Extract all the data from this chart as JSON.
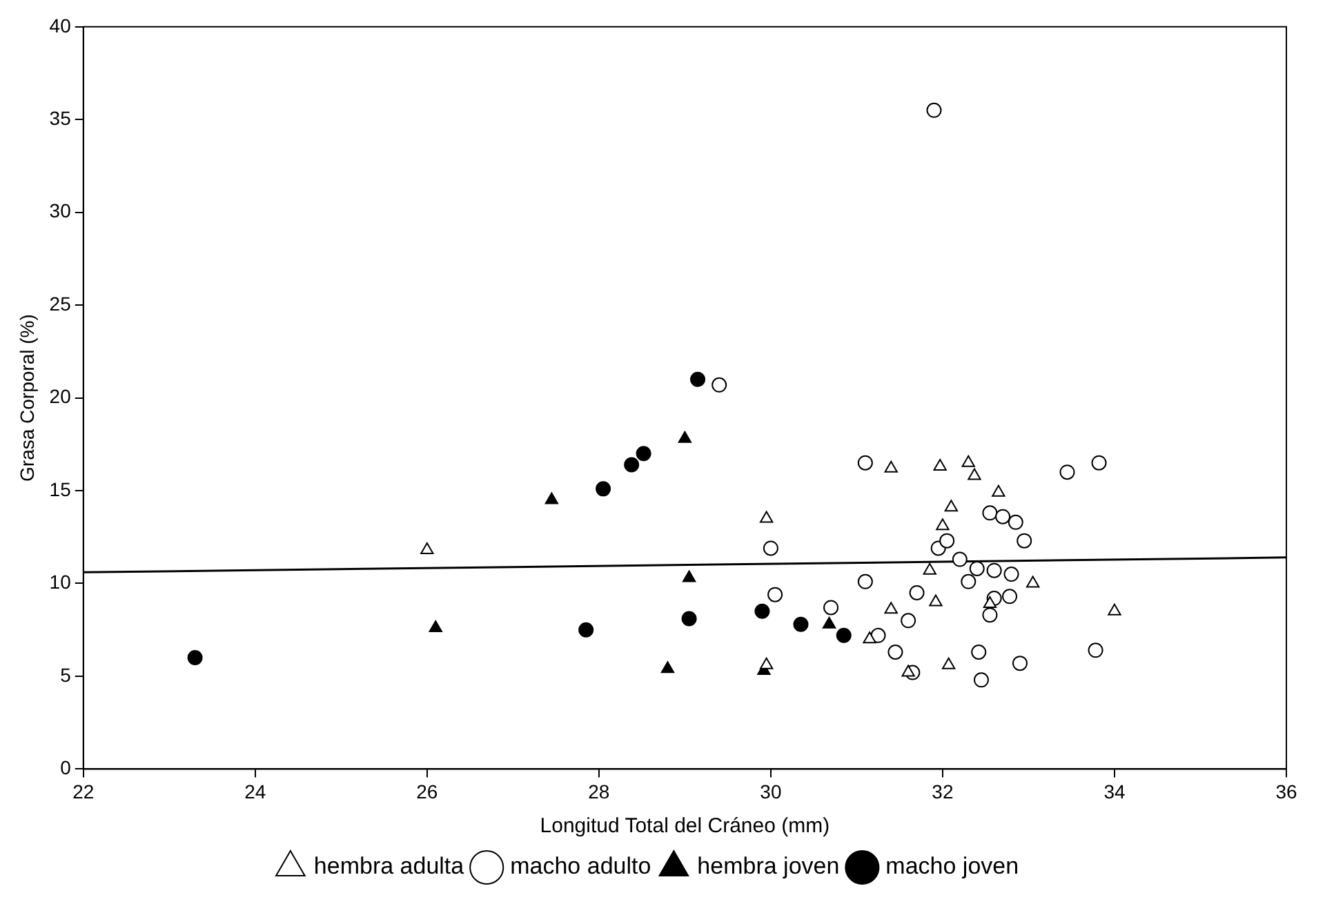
{
  "chart_data": {
    "type": "scatter",
    "xlabel": "Longitud Total del Cráneo (mm)",
    "ylabel": "Grasa Corporal (%)",
    "xlim": [
      22,
      36
    ],
    "xticks": [
      22,
      24,
      26,
      28,
      30,
      32,
      34,
      36
    ],
    "ylim": [
      0,
      40
    ],
    "yticks": [
      0,
      5,
      10,
      15,
      20,
      25,
      30,
      35,
      40
    ],
    "grid": false,
    "legend": "bottom",
    "series": [
      {
        "name": "hembra adulta",
        "color": "#ffffff",
        "marker": "triangle",
        "x": [
          26.0,
          29.95,
          29.95,
          31.15,
          31.4,
          31.4,
          31.6,
          31.85,
          31.92,
          31.97,
          32.0,
          32.1,
          32.07,
          32.3,
          32.37,
          32.55,
          32.65,
          33.05,
          34.0
        ],
        "values": [
          11.8,
          13.5,
          5.6,
          7.0,
          8.6,
          16.2,
          5.2,
          10.7,
          9.0,
          16.3,
          13.1,
          14.1,
          5.6,
          16.5,
          15.8,
          8.9,
          14.9,
          10.0,
          8.5
        ]
      },
      {
        "name": "macho adulto",
        "color": "#ffffff",
        "marker": "circle",
        "x": [
          31.9,
          29.4,
          30.0,
          30.05,
          31.1,
          31.1,
          30.7,
          31.25,
          31.45,
          31.65,
          31.6,
          31.7,
          31.95,
          32.05,
          32.2,
          32.3,
          32.4,
          32.42,
          32.45,
          32.55,
          32.6,
          32.6,
          32.55,
          32.7,
          32.8,
          32.78,
          32.85,
          32.9,
          32.95,
          33.45,
          33.78,
          33.82
        ],
        "values": [
          35.5,
          20.7,
          11.9,
          9.4,
          16.5,
          10.1,
          8.7,
          7.2,
          6.3,
          5.2,
          8.0,
          9.5,
          11.9,
          12.3,
          11.3,
          10.1,
          10.8,
          6.3,
          4.8,
          13.8,
          10.7,
          9.2,
          8.3,
          13.6,
          10.5,
          9.3,
          13.3,
          5.7,
          12.3,
          16.0,
          6.4,
          16.5
        ]
      },
      {
        "name": "hembra joven",
        "color": "#000000",
        "marker": "triangle",
        "x": [
          26.1,
          27.45,
          28.8,
          29.0,
          29.05,
          29.92,
          30.68
        ],
        "values": [
          7.6,
          14.5,
          5.4,
          17.8,
          10.3,
          5.3,
          7.8
        ]
      },
      {
        "name": "macho joven",
        "color": "#000000",
        "marker": "circle",
        "x": [
          23.3,
          27.85,
          28.05,
          28.38,
          28.52,
          29.15,
          29.05,
          29.9,
          30.35,
          30.85
        ],
        "values": [
          6.0,
          7.5,
          15.1,
          16.4,
          17.0,
          21.0,
          8.1,
          8.5,
          7.8,
          7.2
        ]
      },
      {
        "type": "line",
        "color": "#000000",
        "marker": "none",
        "line_style": "solid",
        "x": [
          22,
          36
        ],
        "values": [
          10.6,
          11.4
        ]
      }
    ]
  }
}
